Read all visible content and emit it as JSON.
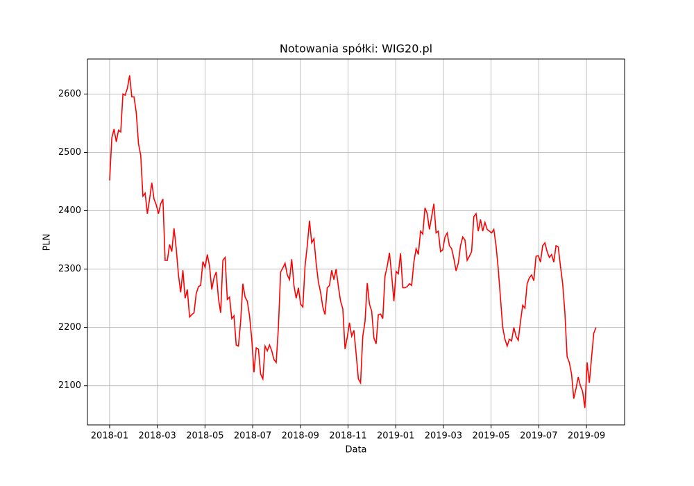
{
  "chart_data": {
    "type": "line",
    "title": "Notowania spółki: WIG20.pl",
    "xlabel": "Data",
    "ylabel": "PLN",
    "xticks": [
      "2018-01",
      "2018-03",
      "2018-05",
      "2018-07",
      "2018-09",
      "2018-11",
      "2019-01",
      "2019-03",
      "2019-05",
      "2019-07",
      "2019-09"
    ],
    "ylim": [
      2033,
      2660
    ],
    "yticks": [
      2100,
      2200,
      2300,
      2400,
      2500,
      2600
    ],
    "grid": true,
    "series": [
      {
        "name": "WIG20.pl",
        "color": "#ff0000",
        "values": [
          2452,
          2525,
          2540,
          2518,
          2538,
          2535,
          2600,
          2598,
          2610,
          2632,
          2595,
          2595,
          2568,
          2515,
          2495,
          2425,
          2430,
          2395,
          2420,
          2448,
          2420,
          2410,
          2395,
          2412,
          2420,
          2315,
          2315,
          2342,
          2330,
          2370,
          2335,
          2290,
          2260,
          2298,
          2250,
          2265,
          2218,
          2222,
          2225,
          2258,
          2270,
          2272,
          2313,
          2303,
          2325,
          2305,
          2265,
          2285,
          2295,
          2250,
          2225,
          2315,
          2320,
          2248,
          2252,
          2215,
          2220,
          2170,
          2168,
          2210,
          2275,
          2252,
          2245,
          2220,
          2180,
          2123,
          2165,
          2163,
          2120,
          2112,
          2168,
          2160,
          2170,
          2160,
          2145,
          2140,
          2200,
          2295,
          2302,
          2310,
          2290,
          2282,
          2317,
          2272,
          2250,
          2268,
          2240,
          2235,
          2305,
          2340,
          2383,
          2345,
          2352,
          2310,
          2278,
          2260,
          2235,
          2222,
          2268,
          2272,
          2298,
          2282,
          2300,
          2270,
          2245,
          2232,
          2163,
          2183,
          2208,
          2185,
          2195,
          2155,
          2112,
          2105,
          2185,
          2210,
          2276,
          2240,
          2228,
          2182,
          2172,
          2222,
          2223,
          2215,
          2288,
          2305,
          2328,
          2290,
          2245,
          2296,
          2292,
          2327,
          2268,
          2268,
          2270,
          2275,
          2272,
          2312,
          2335,
          2325,
          2365,
          2360,
          2405,
          2395,
          2368,
          2390,
          2412,
          2362,
          2365,
          2330,
          2333,
          2355,
          2362,
          2340,
          2335,
          2318,
          2297,
          2310,
          2340,
          2355,
          2350,
          2315,
          2322,
          2330,
          2390,
          2395,
          2365,
          2385,
          2365,
          2380,
          2368,
          2365,
          2362,
          2368,
          2340,
          2300,
          2250,
          2200,
          2180,
          2168,
          2180,
          2177,
          2200,
          2185,
          2178,
          2210,
          2238,
          2233,
          2275,
          2285,
          2290,
          2280,
          2322,
          2323,
          2312,
          2340,
          2345,
          2330,
          2320,
          2325,
          2312,
          2340,
          2338,
          2305,
          2275,
          2225,
          2150,
          2140,
          2120,
          2078,
          2095,
          2115,
          2100,
          2090,
          2062,
          2140,
          2105,
          2148,
          2190,
          2200
        ]
      }
    ]
  }
}
